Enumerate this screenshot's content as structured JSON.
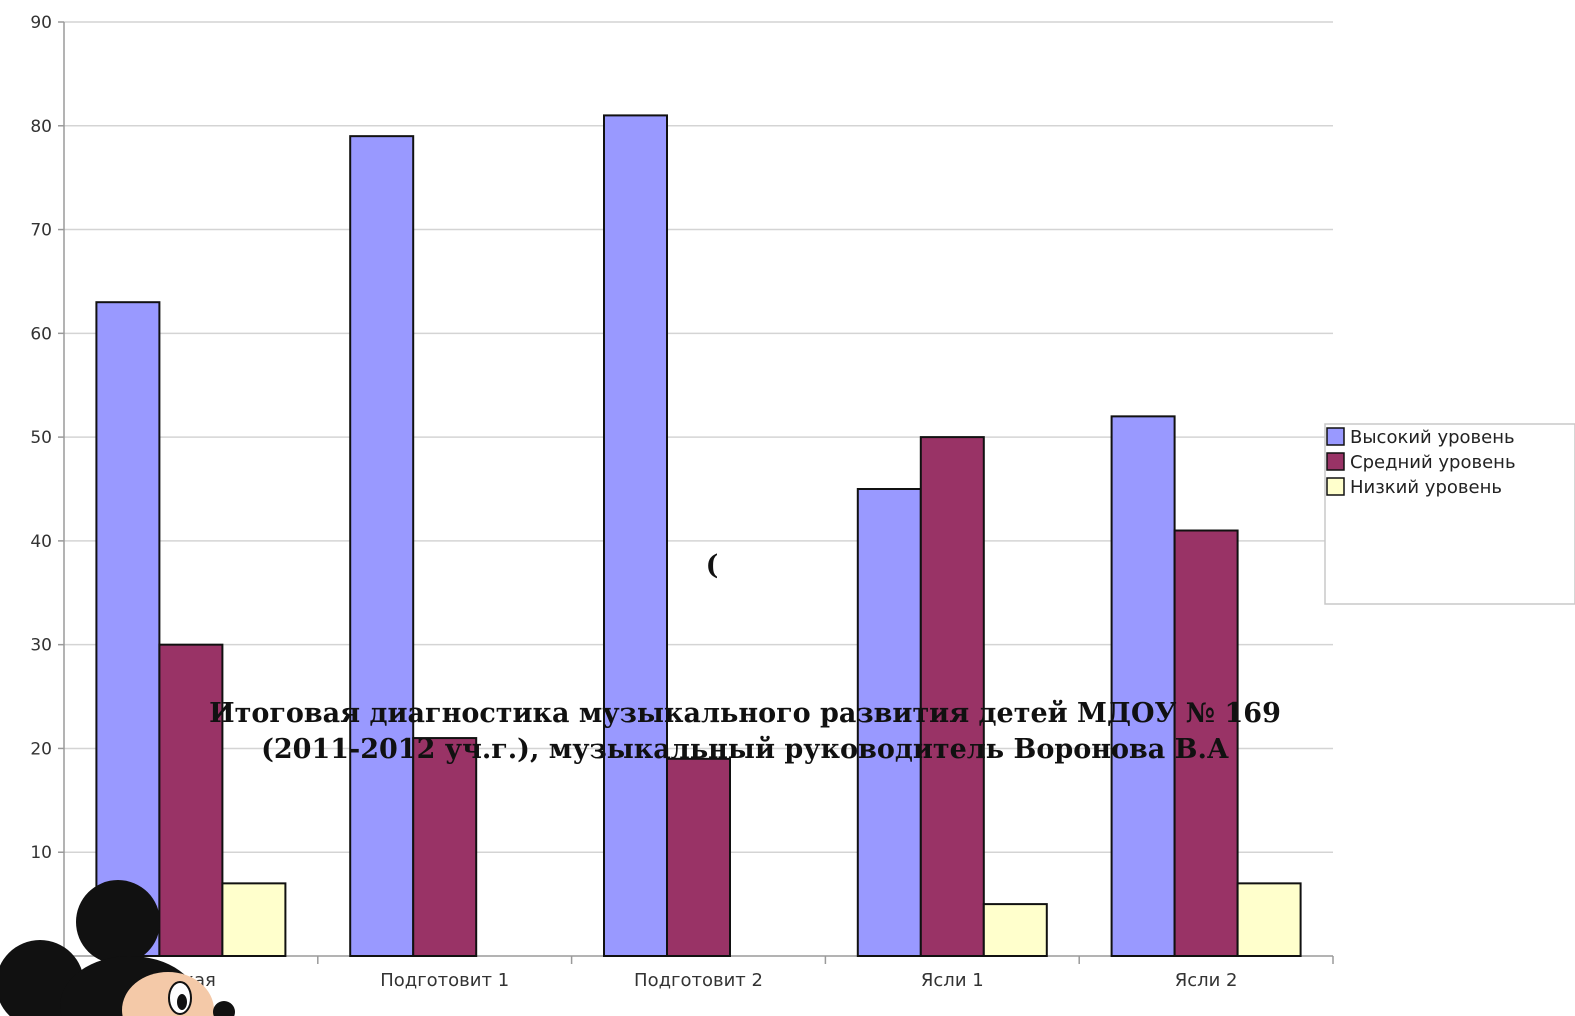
{
  "chart_data": {
    "type": "bar",
    "title_lines": [
      "Итоговая  диагностика музыкального развития детей МДОУ № 169",
      "(2011-2012 уч.г.), музыкальный руководитель Воронова В.А"
    ],
    "stray_text": "(",
    "categories": [
      "...кая",
      "Подготовит 1",
      "Подготовит 2",
      "Ясли 1",
      "Ясли 2"
    ],
    "series": [
      {
        "name": "Высокий уровень",
        "color": "#9999ff",
        "values": [
          63,
          79,
          81,
          45,
          52
        ]
      },
      {
        "name": "Средний уровень",
        "color": "#993366",
        "values": [
          30,
          21,
          19,
          50,
          41
        ]
      },
      {
        "name": "Низкий уровень",
        "color": "#ffffcc",
        "values": [
          7,
          0,
          0,
          5,
          7
        ]
      }
    ],
    "ylim": [
      0,
      90
    ],
    "yticks": [
      10,
      20,
      30,
      40,
      50,
      60,
      70,
      80,
      90
    ],
    "grid": true,
    "legend_position": "right"
  },
  "decorations": {
    "mascot": "mickey-mouse-icon"
  }
}
